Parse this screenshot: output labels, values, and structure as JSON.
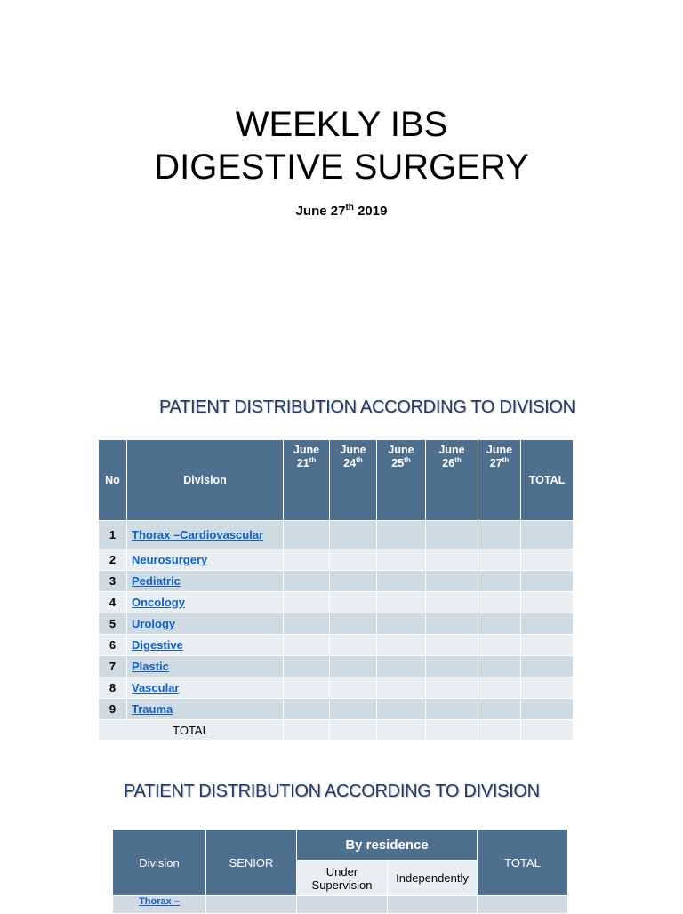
{
  "title": {
    "line1": "WEEKLY IBS",
    "line2": "DIGESTIVE SURGERY"
  },
  "date": {
    "month_day": "June 27",
    "suffix": "th",
    "year": "2019"
  },
  "table1": {
    "heading": "PATIENT DISTRIBUTION  ACCORDING TO DIVISION",
    "headers": {
      "no": "No",
      "division": "Division",
      "dates": [
        {
          "month": "June",
          "day": "21",
          "suffix": "th"
        },
        {
          "month": "June",
          "day": "24",
          "suffix": "th"
        },
        {
          "month": "June",
          "day": "25",
          "suffix": "th"
        },
        {
          "month": "June",
          "day": "26",
          "suffix": "th"
        },
        {
          "month": "June",
          "day": "27",
          "suffix": "th"
        }
      ],
      "total": "TOTAL"
    },
    "rows": [
      {
        "no": "1",
        "division": "Thorax –Cardiovascular"
      },
      {
        "no": "2",
        "division": "Neurosurgery"
      },
      {
        "no": "3",
        "division": "Pediatric"
      },
      {
        "no": "4",
        "division": "Oncology"
      },
      {
        "no": "5",
        "division": "Urology"
      },
      {
        "no": "6",
        "division": "Digestive"
      },
      {
        "no": "7",
        "division": "Plastic"
      },
      {
        "no": "8",
        "division": "Vascular"
      },
      {
        "no": "9",
        "division": "Trauma"
      }
    ],
    "total_label": "TOTAL"
  },
  "table2": {
    "heading": "PATIENT DISTRIBUTION ACCORDING TO DIVISION",
    "headers": {
      "division": "Division",
      "senior": "SENIOR",
      "by_residence": "By residence",
      "under_supervision_1": "Under",
      "under_supervision_2": "Supervision",
      "independently": "Independently",
      "total": "TOTAL"
    },
    "first_row_division": "Thorax –"
  },
  "colors": {
    "header_bg": "#4F6F8F",
    "row_dark": "#D0DAE3",
    "row_light": "#E9EEF2",
    "link": "#1560BD",
    "heading": "#1F3864"
  }
}
